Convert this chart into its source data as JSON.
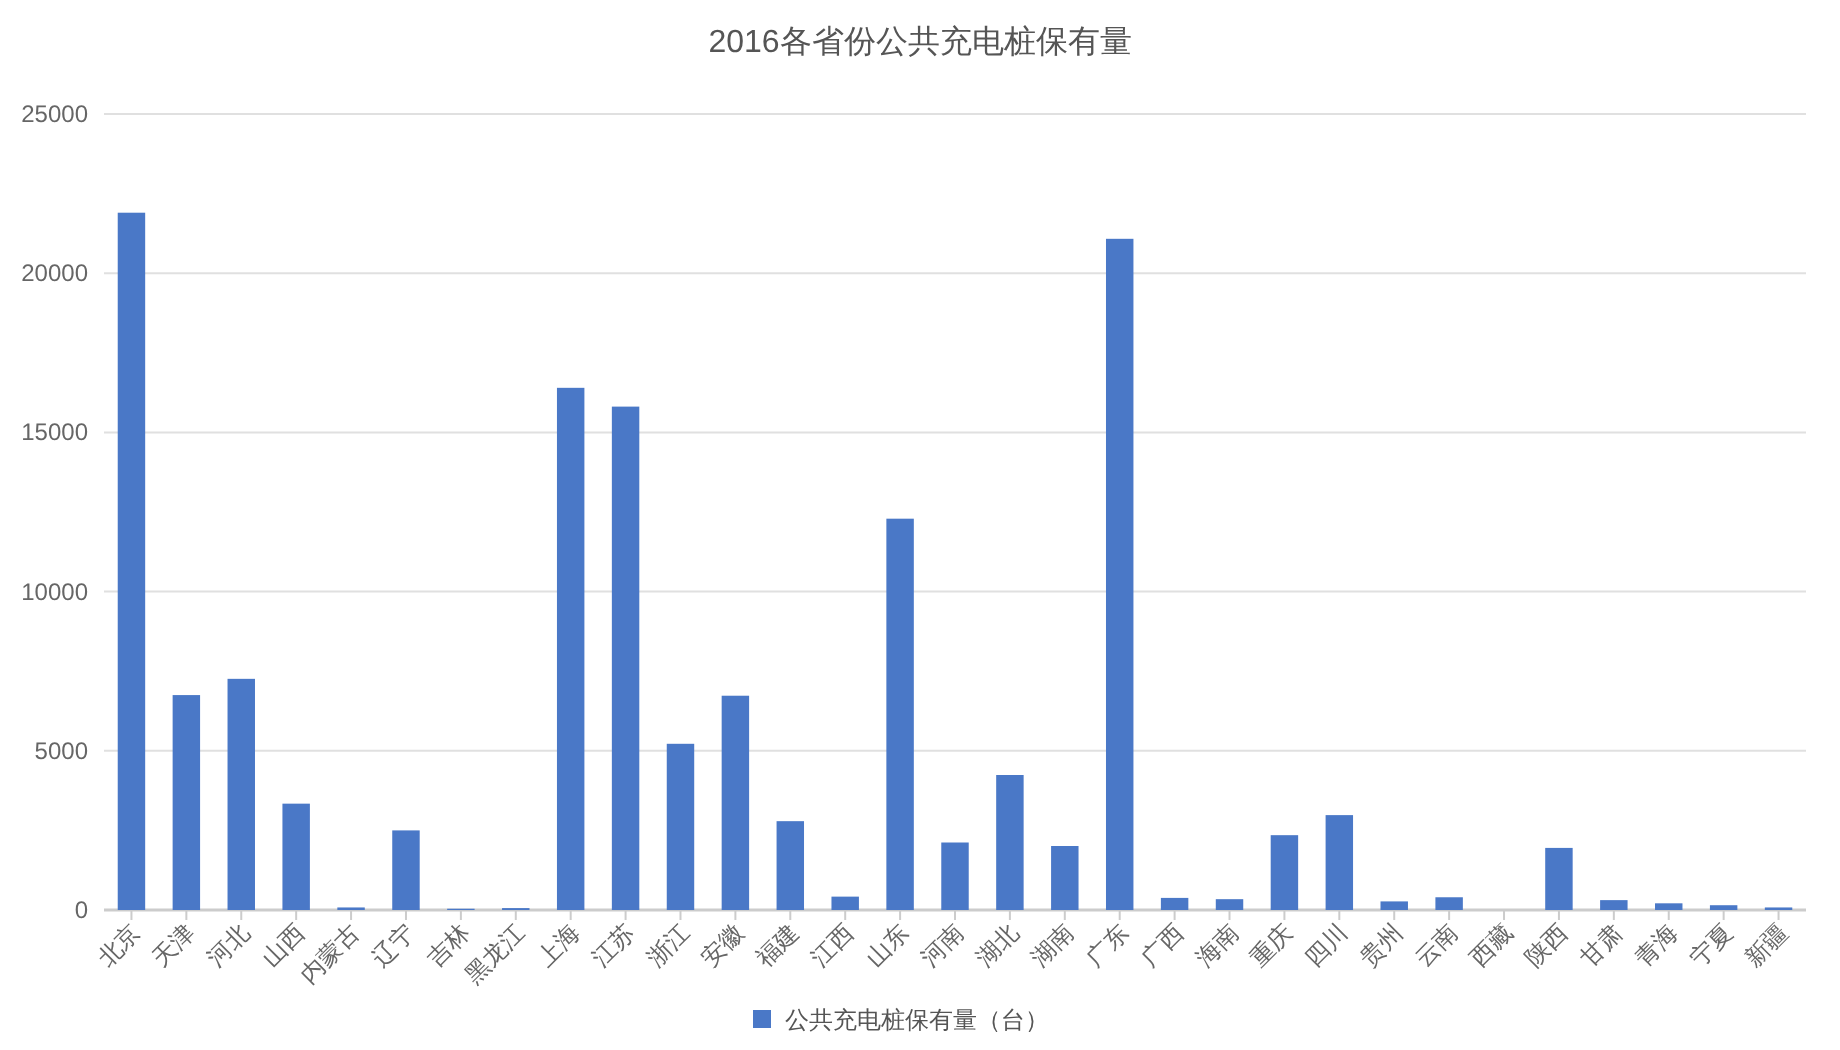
{
  "chart_data": {
    "type": "bar",
    "title": "2016各省份公共充电桩保有量",
    "categories": [
      "北京",
      "天津",
      "河北",
      "山西",
      "内蒙古",
      "辽宁",
      "吉林",
      "黑龙江",
      "上海",
      "江苏",
      "浙江",
      "安徽",
      "福建",
      "江西",
      "山东",
      "河南",
      "湖北",
      "湖南",
      "广东",
      "广西",
      "海南",
      "重庆",
      "四川",
      "贵州",
      "云南",
      "西藏",
      "陕西",
      "甘肃",
      "青海",
      "宁夏",
      "新疆"
    ],
    "series": [
      {
        "name": "公共充电桩保有量（台）",
        "color": "#4a78c7",
        "values": [
          21900,
          6750,
          7260,
          3340,
          80,
          2500,
          40,
          60,
          16400,
          15810,
          5220,
          6730,
          2790,
          420,
          12290,
          2120,
          4240,
          2010,
          21080,
          380,
          340,
          2350,
          2980,
          270,
          400,
          0,
          1950,
          310,
          210,
          150,
          80
        ]
      }
    ],
    "ylim": [
      0,
      25000
    ],
    "yticks": [
      0,
      5000,
      10000,
      15000,
      20000,
      25000
    ],
    "grid": "y",
    "legend": "bottom"
  }
}
